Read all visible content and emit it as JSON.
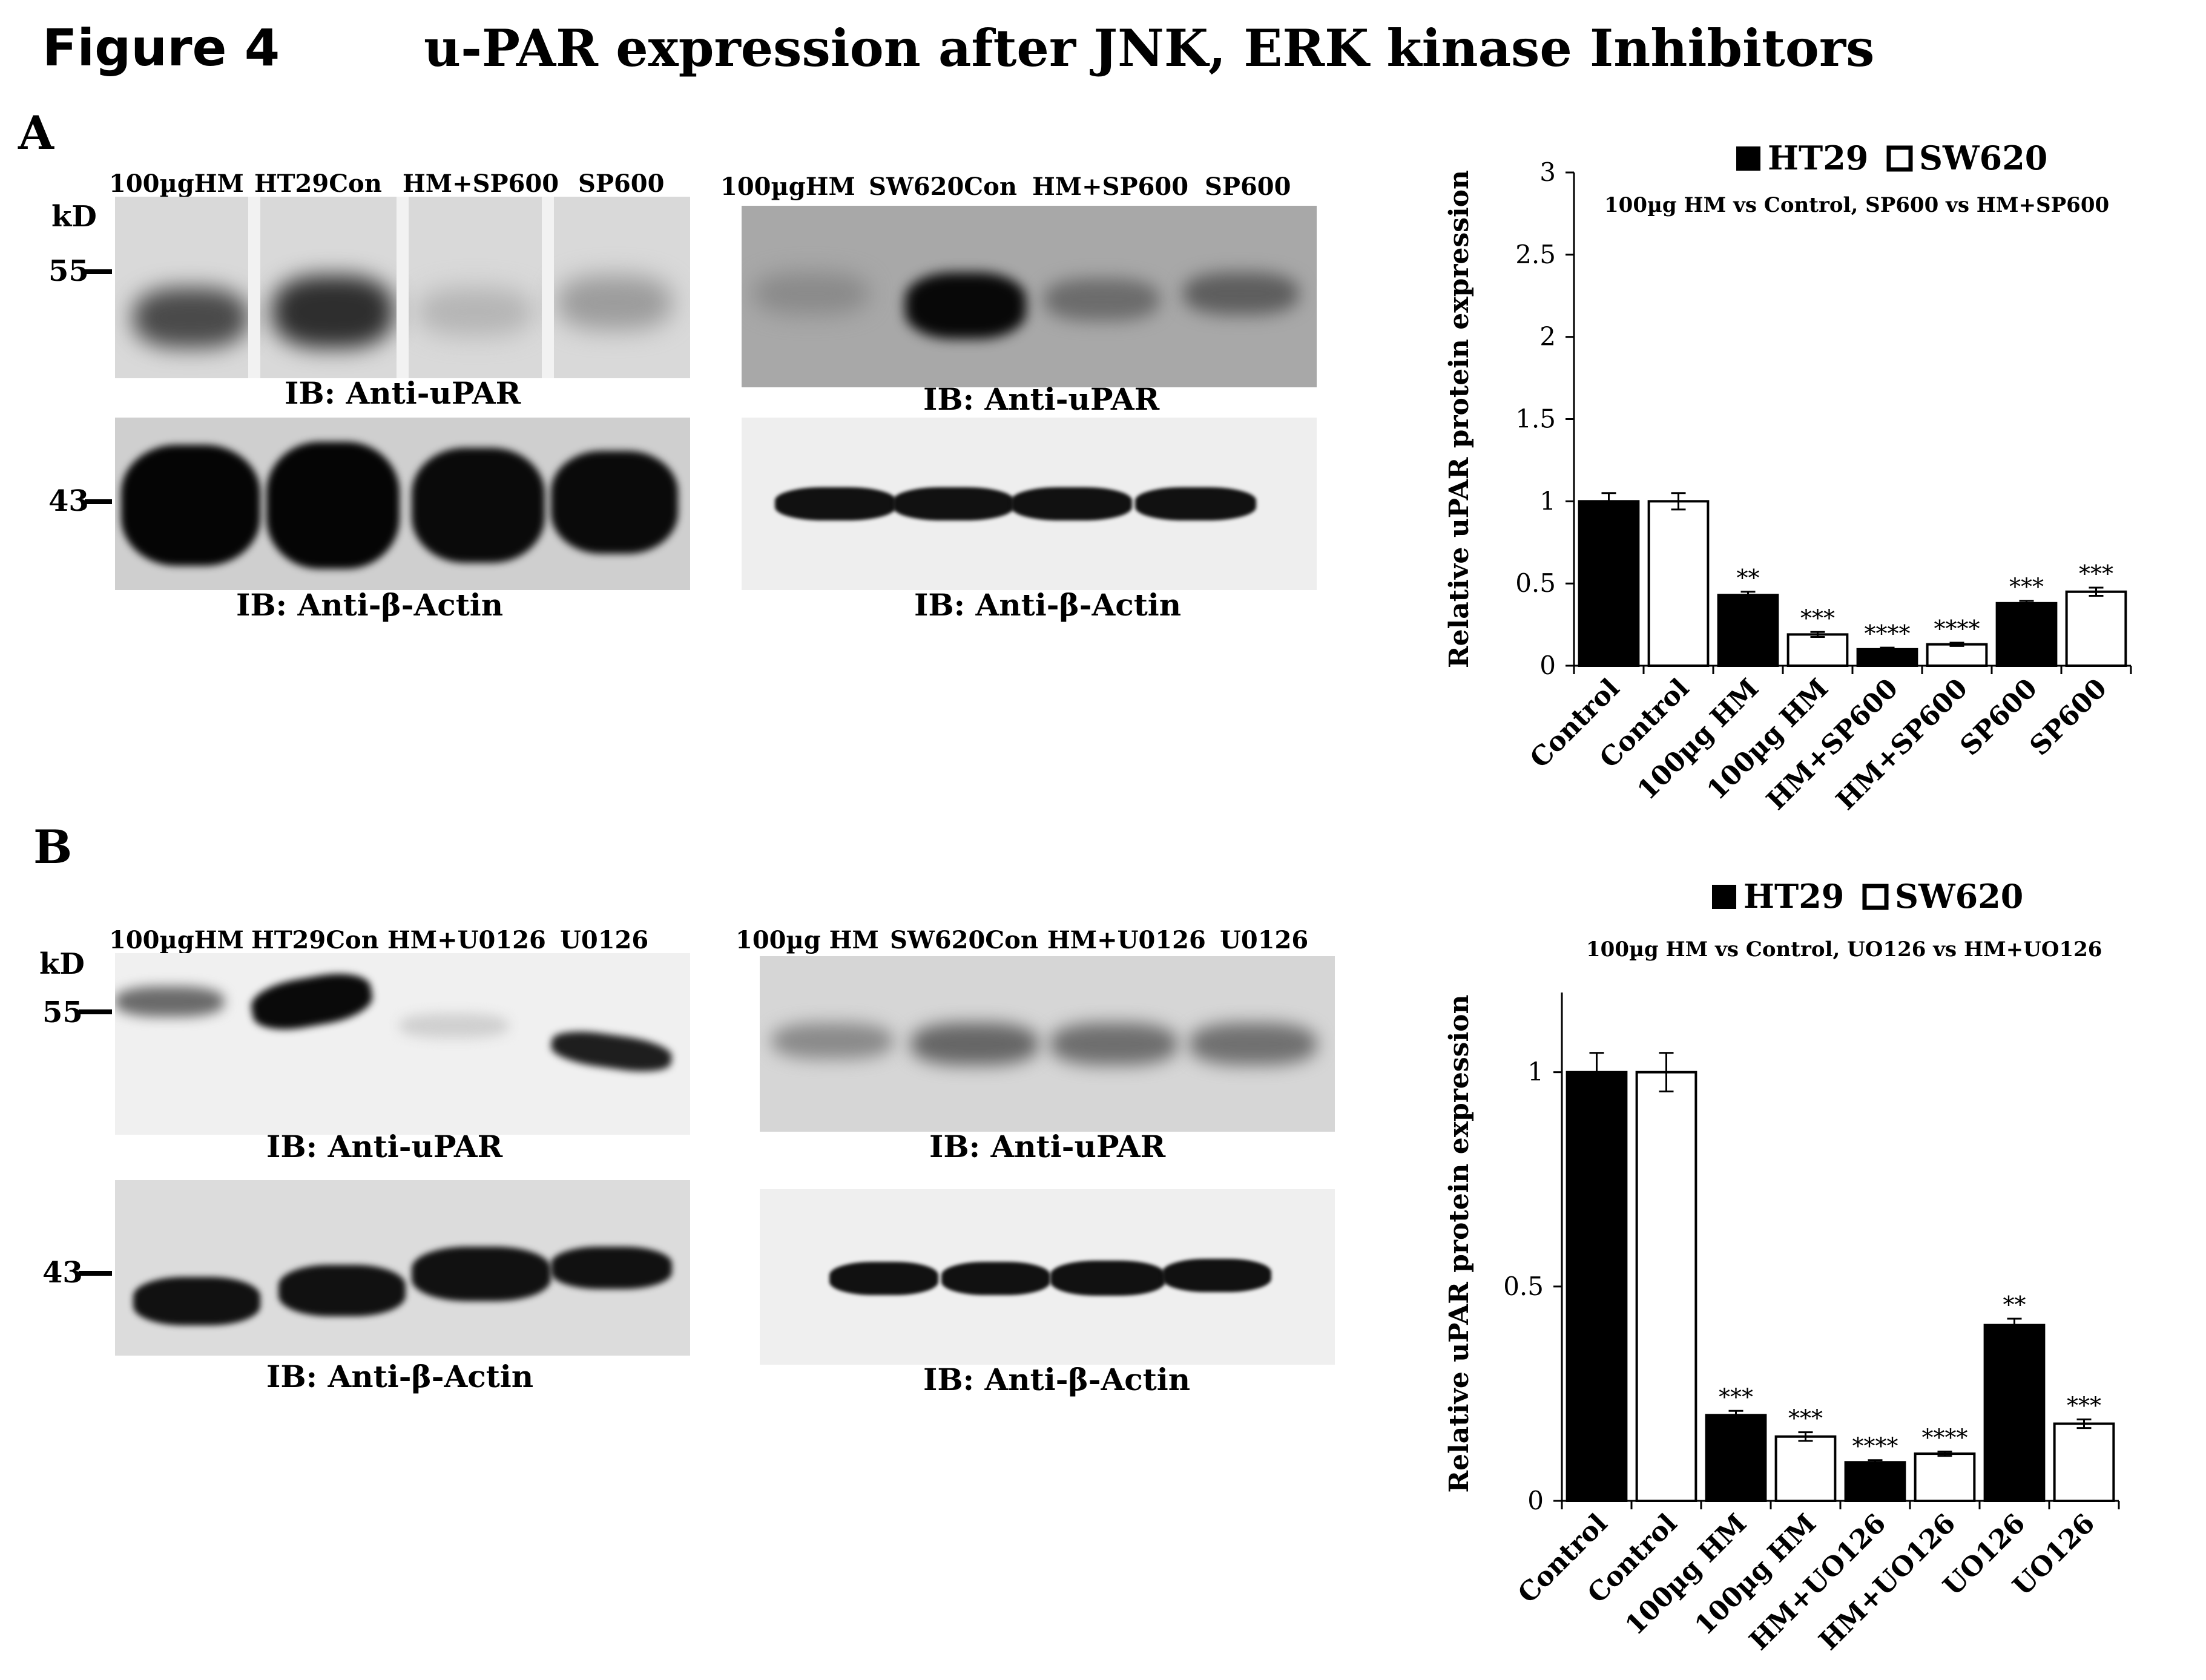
{
  "figure": {
    "label": "Figure 4",
    "title": "u-PAR expression after JNK, ERK kinase Inhibitors"
  },
  "panels": {
    "A": {
      "letter": "A",
      "kd_label": "kD",
      "marker_55": "55",
      "marker_43": "43",
      "blot1_lanes": [
        "100µgHM",
        "HT29Con",
        "HM+SP600",
        "SP600"
      ],
      "blot2_lanes": [
        "100µgHM",
        "SW620Con",
        "HM+SP600",
        "SP600"
      ],
      "ib_upar": "IB: Anti-uPAR",
      "ib_actin": "IB: Anti-β-Actin"
    },
    "B": {
      "letter": "B",
      "kd_label": "kD",
      "marker_55": "55",
      "marker_43": "43",
      "blot1_lanes": [
        "100µgHM",
        "HT29Con",
        "HM+U0126",
        "U0126"
      ],
      "blot2_lanes": [
        "100µg HM",
        "SW620Con",
        "HM+U0126",
        "U0126"
      ],
      "ib_upar": "IB: Anti-uPAR",
      "ib_actin": "IB: Anti-β-Actin"
    }
  },
  "chart_data": [
    {
      "type": "bar",
      "legend": [
        "HT29",
        "SW620"
      ],
      "legend_placement": "top",
      "subtitle": "100µg HM vs Control,  SP600 vs HM+SP600",
      "ylabel": "Relative uPAR protein expression",
      "ylim": [
        0,
        3
      ],
      "yticks": [
        "0",
        "0.5",
        "1",
        "1.5",
        "2",
        "2.5",
        "3"
      ],
      "categories": [
        "Control",
        "Control",
        "100µg HM",
        "100µg HM",
        "HM+SP600",
        "HM+SP600",
        "SP600",
        "SP600"
      ],
      "series_of_bar": [
        "HT29",
        "SW620",
        "HT29",
        "SW620",
        "HT29",
        "SW620",
        "HT29",
        "SW620"
      ],
      "values": [
        1.0,
        1.0,
        0.43,
        0.19,
        0.1,
        0.13,
        0.38,
        0.45
      ],
      "errors": [
        0.05,
        0.05,
        0.02,
        0.015,
        0.01,
        0.01,
        0.015,
        0.025
      ],
      "significance": [
        "",
        "",
        "**",
        "***",
        "****",
        "****",
        "***",
        "***"
      ],
      "colors": {
        "HT29": "#000000",
        "SW620": "#ffffff"
      }
    },
    {
      "type": "bar",
      "legend": [
        "HT29",
        "SW620"
      ],
      "legend_placement": "top",
      "subtitle": "100µg HM vs Control,  UO126 vs HM+UO126",
      "ylabel": "Relative uPAR protein expression",
      "ylim": [
        0,
        1.2
      ],
      "yticks": [
        "0",
        "0.5",
        "1"
      ],
      "categories": [
        "Control",
        "Control",
        "100µg HM",
        "100µg HM",
        "HM+UO126",
        "HM+UO126",
        "UO126",
        "UO126"
      ],
      "series_of_bar": [
        "HT29",
        "SW620",
        "HT29",
        "SW620",
        "HT29",
        "SW620",
        "HT29",
        "SW620"
      ],
      "values": [
        1.0,
        1.0,
        0.2,
        0.15,
        0.09,
        0.11,
        0.41,
        0.18
      ],
      "errors": [
        0.045,
        0.045,
        0.01,
        0.01,
        0.005,
        0.005,
        0.015,
        0.01
      ],
      "significance": [
        "",
        "",
        "***",
        "***",
        "****",
        "****",
        "**",
        "***"
      ],
      "colors": {
        "HT29": "#000000",
        "SW620": "#ffffff"
      }
    }
  ]
}
